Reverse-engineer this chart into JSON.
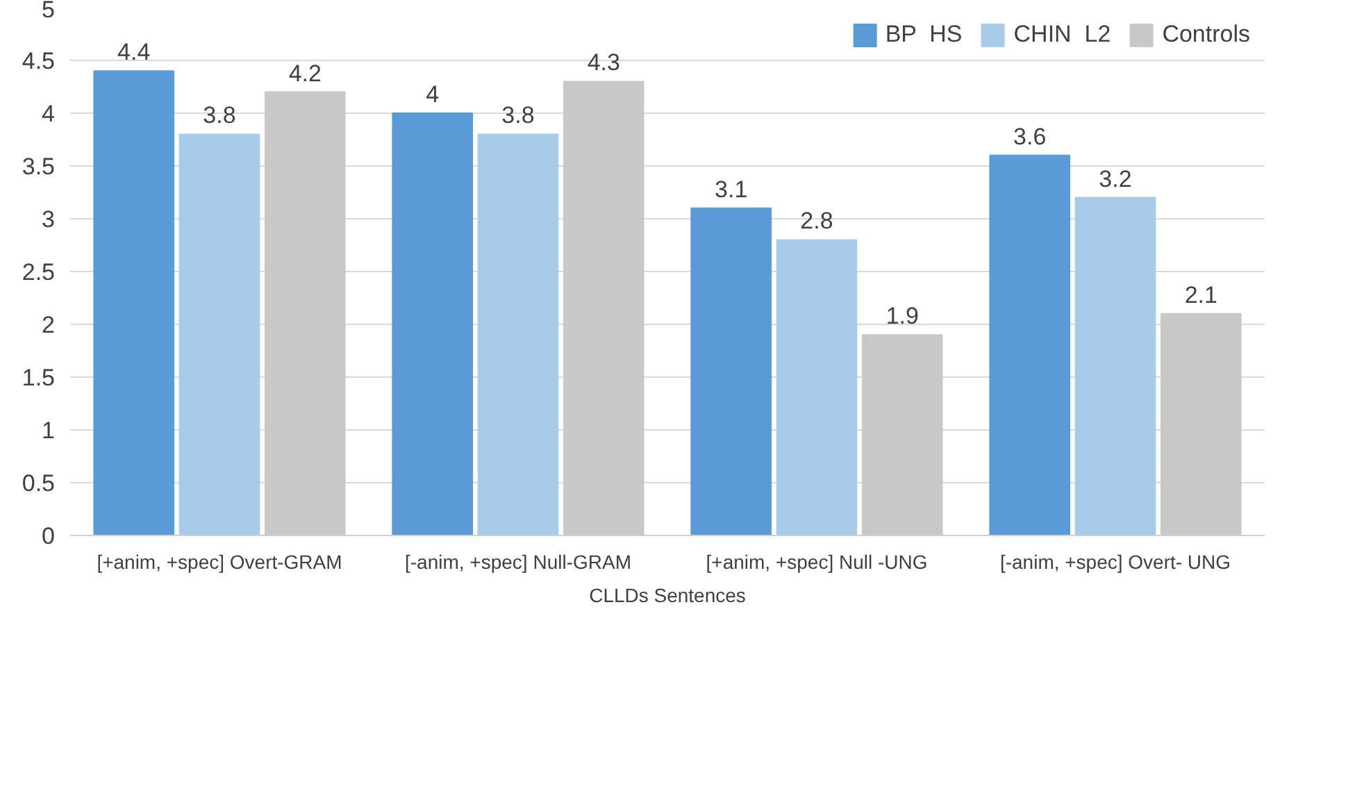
{
  "chart_data": {
    "type": "bar",
    "xlabel": "CLLDs Sentences",
    "categories": [
      "[+anim, +spec] Overt-GRAM",
      "[-anim, +spec] Null-GRAM",
      "[+anim, +spec] Null -UNG",
      "[-anim, +spec] Overt- UNG"
    ],
    "series": [
      {
        "name": "BP  HS",
        "color": "#5b9bd5",
        "values": [
          4.4,
          4.0,
          3.1,
          3.6
        ]
      },
      {
        "name": "CHIN  L2",
        "color": "#a9cbea",
        "values": [
          3.8,
          3.8,
          2.8,
          3.2
        ]
      },
      {
        "name": "Controls",
        "color": "#c8c8c8",
        "values": [
          4.2,
          4.3,
          1.9,
          2.1
        ]
      }
    ],
    "ylim": [
      0,
      5
    ],
    "yticks": [
      0,
      0.5,
      1,
      1.5,
      2,
      2.5,
      3,
      3.5,
      4,
      4.5,
      5
    ],
    "grid": "y",
    "legend": "top right",
    "data_labels": true
  }
}
